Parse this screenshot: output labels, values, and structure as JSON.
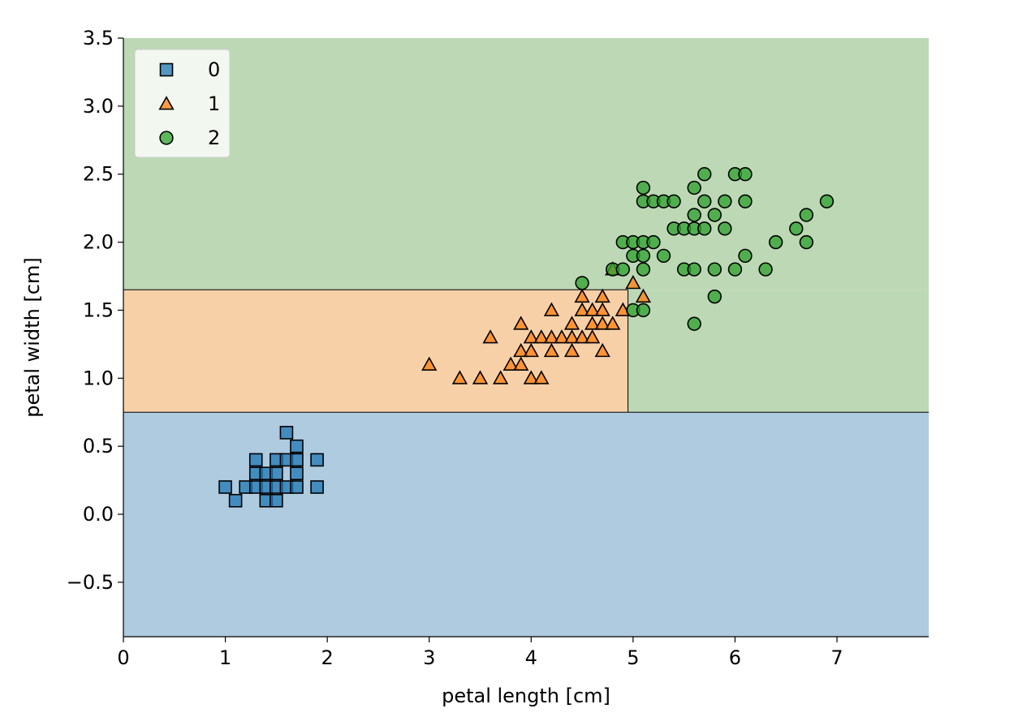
{
  "chart_data": {
    "type": "scatter",
    "title": "",
    "xlabel": "petal length [cm]",
    "ylabel": "petal width [cm]",
    "xlim": [
      0,
      7.9
    ],
    "ylim": [
      -0.9,
      3.5
    ],
    "xticks": [
      0,
      1,
      2,
      3,
      4,
      5,
      6,
      7
    ],
    "xtick_labels": [
      "0",
      "1",
      "2",
      "3",
      "4",
      "5",
      "6",
      "7"
    ],
    "yticks": [
      -0.5,
      0.0,
      0.5,
      1.0,
      1.5,
      2.0,
      2.5,
      3.0,
      3.5
    ],
    "ytick_labels": [
      "−0.5",
      "0.0",
      "0.5",
      "1.0",
      "1.5",
      "2.0",
      "2.5",
      "3.0",
      "3.5"
    ],
    "grid": false,
    "legend_position": "top-left",
    "decision_regions": [
      {
        "class": "0",
        "x": [
          0,
          7.9
        ],
        "y": [
          -0.9,
          0.75
        ],
        "color": "#aecbe0"
      },
      {
        "class": "1",
        "x": [
          0,
          4.95
        ],
        "y": [
          0.75,
          1.65
        ],
        "color": "#f8d0a8"
      },
      {
        "class": "2",
        "x": [
          0,
          7.9
        ],
        "y": [
          1.65,
          3.5
        ],
        "color": "#bdd8b4"
      },
      {
        "class": "2",
        "x": [
          4.95,
          7.9
        ],
        "y": [
          0.75,
          1.65
        ],
        "color": "#bdd8b4"
      }
    ],
    "series": [
      {
        "name": "0",
        "marker": "square",
        "color": "#1f77b4",
        "points": [
          [
            1.0,
            0.2
          ],
          [
            1.1,
            0.1
          ],
          [
            1.2,
            0.2
          ],
          [
            1.3,
            0.2
          ],
          [
            1.3,
            0.3
          ],
          [
            1.3,
            0.4
          ],
          [
            1.4,
            0.1
          ],
          [
            1.4,
            0.2
          ],
          [
            1.4,
            0.3
          ],
          [
            1.5,
            0.1
          ],
          [
            1.5,
            0.2
          ],
          [
            1.5,
            0.3
          ],
          [
            1.5,
            0.4
          ],
          [
            1.6,
            0.2
          ],
          [
            1.6,
            0.4
          ],
          [
            1.6,
            0.6
          ],
          [
            1.7,
            0.2
          ],
          [
            1.7,
            0.3
          ],
          [
            1.7,
            0.4
          ],
          [
            1.7,
            0.5
          ],
          [
            1.9,
            0.2
          ],
          [
            1.9,
            0.4
          ]
        ]
      },
      {
        "name": "1",
        "marker": "triangle",
        "color": "#ff7f0e",
        "points": [
          [
            3.0,
            1.1
          ],
          [
            3.3,
            1.0
          ],
          [
            3.5,
            1.0
          ],
          [
            3.6,
            1.3
          ],
          [
            3.7,
            1.0
          ],
          [
            3.8,
            1.1
          ],
          [
            3.9,
            1.1
          ],
          [
            3.9,
            1.2
          ],
          [
            3.9,
            1.4
          ],
          [
            4.0,
            1.0
          ],
          [
            4.0,
            1.2
          ],
          [
            4.0,
            1.3
          ],
          [
            4.1,
            1.0
          ],
          [
            4.1,
            1.3
          ],
          [
            4.2,
            1.2
          ],
          [
            4.2,
            1.3
          ],
          [
            4.2,
            1.5
          ],
          [
            4.3,
            1.3
          ],
          [
            4.4,
            1.2
          ],
          [
            4.4,
            1.3
          ],
          [
            4.4,
            1.4
          ],
          [
            4.5,
            1.3
          ],
          [
            4.5,
            1.5
          ],
          [
            4.5,
            1.6
          ],
          [
            4.6,
            1.3
          ],
          [
            4.6,
            1.4
          ],
          [
            4.6,
            1.5
          ],
          [
            4.7,
            1.2
          ],
          [
            4.7,
            1.4
          ],
          [
            4.7,
            1.5
          ],
          [
            4.7,
            1.6
          ],
          [
            4.8,
            1.4
          ],
          [
            4.8,
            1.8
          ],
          [
            4.9,
            1.5
          ],
          [
            5.0,
            1.7
          ],
          [
            5.1,
            1.6
          ]
        ]
      },
      {
        "name": "2",
        "marker": "circle",
        "color": "#2ca02c",
        "points": [
          [
            4.5,
            1.7
          ],
          [
            4.8,
            1.8
          ],
          [
            4.9,
            1.8
          ],
          [
            4.9,
            2.0
          ],
          [
            5.0,
            1.5
          ],
          [
            5.0,
            1.9
          ],
          [
            5.0,
            2.0
          ],
          [
            5.1,
            1.5
          ],
          [
            5.1,
            1.8
          ],
          [
            5.1,
            1.9
          ],
          [
            5.1,
            2.0
          ],
          [
            5.1,
            2.3
          ],
          [
            5.1,
            2.4
          ],
          [
            5.2,
            2.0
          ],
          [
            5.2,
            2.3
          ],
          [
            5.3,
            1.9
          ],
          [
            5.3,
            2.3
          ],
          [
            5.4,
            2.1
          ],
          [
            5.4,
            2.3
          ],
          [
            5.5,
            1.8
          ],
          [
            5.5,
            2.1
          ],
          [
            5.6,
            1.4
          ],
          [
            5.6,
            1.8
          ],
          [
            5.6,
            2.1
          ],
          [
            5.6,
            2.2
          ],
          [
            5.6,
            2.4
          ],
          [
            5.7,
            2.1
          ],
          [
            5.7,
            2.3
          ],
          [
            5.7,
            2.5
          ],
          [
            5.8,
            1.6
          ],
          [
            5.8,
            1.8
          ],
          [
            5.8,
            2.2
          ],
          [
            5.9,
            2.1
          ],
          [
            5.9,
            2.3
          ],
          [
            6.0,
            1.8
          ],
          [
            6.0,
            2.5
          ],
          [
            6.1,
            1.9
          ],
          [
            6.1,
            2.3
          ],
          [
            6.1,
            2.5
          ],
          [
            6.3,
            1.8
          ],
          [
            6.4,
            2.0
          ],
          [
            6.6,
            2.1
          ],
          [
            6.7,
            2.0
          ],
          [
            6.7,
            2.2
          ],
          [
            6.9,
            2.3
          ]
        ]
      }
    ]
  }
}
